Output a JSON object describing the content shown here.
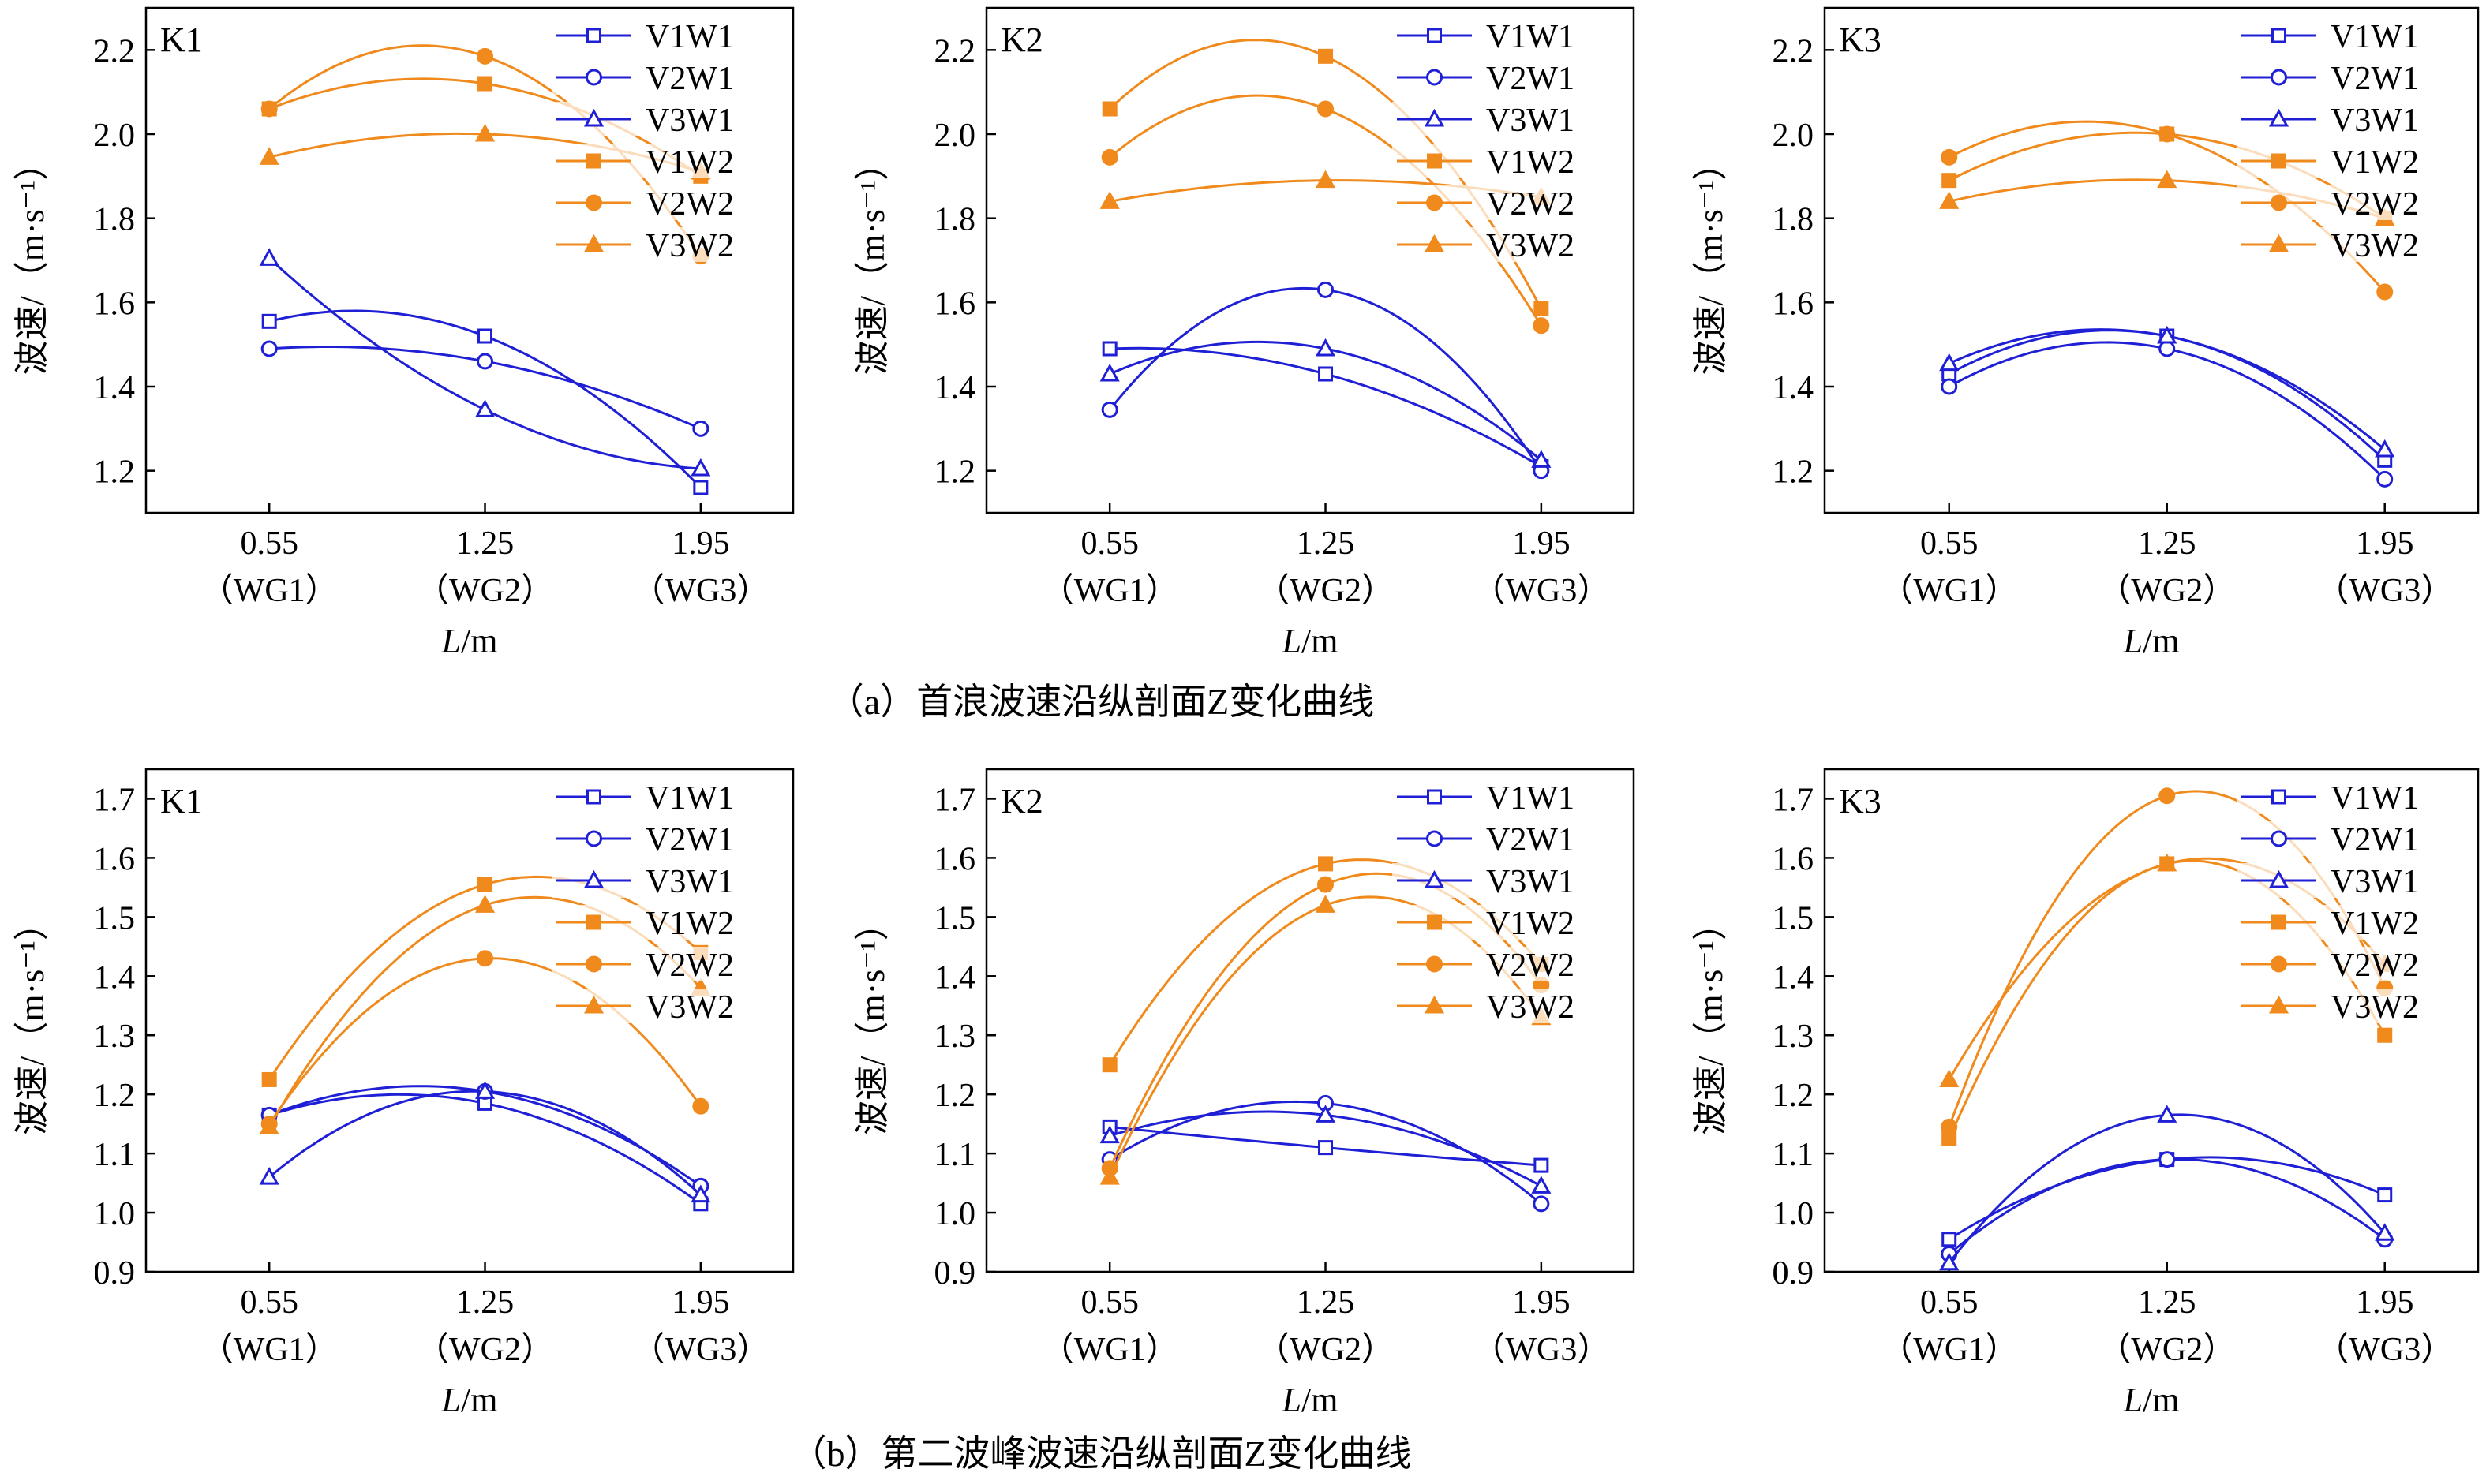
{
  "colors": {
    "w1": "#1f1fd6",
    "w2": "#f08a1c",
    "axis": "#000000"
  },
  "legend_labels": [
    "V1W1",
    "V2W1",
    "V3W1",
    "V1W2",
    "V2W2",
    "V3W2"
  ],
  "markers": [
    "square-open",
    "circle-open",
    "triangle-open",
    "square-filled",
    "circle-filled",
    "triangle-filled"
  ],
  "captions": {
    "a": "（a）首浪波速沿纵剖面Z变化曲线",
    "b": "（b）第二波峰波速沿纵剖面Z变化曲线"
  },
  "chart_data": [
    {
      "type": "line",
      "panel_label": "K1",
      "ylabel": "波速/（m·s⁻¹）",
      "xlabel": "L/m",
      "x": [
        0.55,
        1.25,
        1.95
      ],
      "x_ticklabels": [
        "0.55",
        "1.25",
        "1.95"
      ],
      "x_ticklabels2": [
        "（WG1）",
        "（WG2）",
        "（WG3）"
      ],
      "ylim": [
        1.1,
        2.3
      ],
      "yticks": [
        1.2,
        1.4,
        1.6,
        1.8,
        2.0,
        2.2
      ],
      "ytick_labels": [
        "1.2",
        "1.4",
        "1.6",
        "1.8",
        "2.0",
        "2.2"
      ],
      "series": [
        {
          "name": "V1W1",
          "values": [
            1.555,
            1.52,
            1.16
          ]
        },
        {
          "name": "V2W1",
          "values": [
            1.49,
            1.46,
            1.3
          ]
        },
        {
          "name": "V3W1",
          "values": [
            1.705,
            1.345,
            1.205
          ]
        },
        {
          "name": "V1W2",
          "values": [
            2.06,
            2.12,
            1.9
          ]
        },
        {
          "name": "V2W2",
          "values": [
            2.06,
            2.185,
            1.71
          ]
        },
        {
          "name": "V3W2",
          "values": [
            1.945,
            2.0,
            1.91
          ]
        }
      ]
    },
    {
      "type": "line",
      "panel_label": "K2",
      "ylabel": "波速/（m·s⁻¹）",
      "xlabel": "L/m",
      "x": [
        0.55,
        1.25,
        1.95
      ],
      "x_ticklabels": [
        "0.55",
        "1.25",
        "1.95"
      ],
      "x_ticklabels2": [
        "（WG1）",
        "（WG2）",
        "（WG3）"
      ],
      "ylim": [
        1.1,
        2.3
      ],
      "yticks": [
        1.2,
        1.4,
        1.6,
        1.8,
        2.0,
        2.2
      ],
      "ytick_labels": [
        "1.2",
        "1.4",
        "1.6",
        "1.8",
        "2.0",
        "2.2"
      ],
      "series": [
        {
          "name": "V1W1",
          "values": [
            1.49,
            1.43,
            1.21
          ]
        },
        {
          "name": "V2W1",
          "values": [
            1.345,
            1.63,
            1.2
          ]
        },
        {
          "name": "V3W1",
          "values": [
            1.43,
            1.49,
            1.225
          ]
        },
        {
          "name": "V1W2",
          "values": [
            2.06,
            2.185,
            1.585
          ]
        },
        {
          "name": "V2W2",
          "values": [
            1.945,
            2.06,
            1.545
          ]
        },
        {
          "name": "V3W2",
          "values": [
            1.84,
            1.89,
            1.85
          ]
        }
      ]
    },
    {
      "type": "line",
      "panel_label": "K3",
      "ylabel": "波速/（m·s⁻¹）",
      "xlabel": "L/m",
      "x": [
        0.55,
        1.25,
        1.95
      ],
      "x_ticklabels": [
        "0.55",
        "1.25",
        "1.95"
      ],
      "x_ticklabels2": [
        "（WG1）",
        "（WG2）",
        "（WG3）"
      ],
      "ylim": [
        1.1,
        2.3
      ],
      "yticks": [
        1.2,
        1.4,
        1.6,
        1.8,
        2.0,
        2.2
      ],
      "ytick_labels": [
        "1.2",
        "1.4",
        "1.6",
        "1.8",
        "2.0",
        "2.2"
      ],
      "series": [
        {
          "name": "V1W1",
          "values": [
            1.43,
            1.52,
            1.225
          ]
        },
        {
          "name": "V2W1",
          "values": [
            1.4,
            1.49,
            1.18
          ]
        },
        {
          "name": "V3W1",
          "values": [
            1.455,
            1.52,
            1.25
          ]
        },
        {
          "name": "V1W2",
          "values": [
            1.89,
            2.0,
            1.8
          ]
        },
        {
          "name": "V2W2",
          "values": [
            1.945,
            2.0,
            1.625
          ]
        },
        {
          "name": "V3W2",
          "values": [
            1.84,
            1.89,
            1.8
          ]
        }
      ]
    },
    {
      "type": "line",
      "panel_label": "K1",
      "ylabel": "波速/（m·s⁻¹）",
      "xlabel": "L/m",
      "x": [
        0.55,
        1.25,
        1.95
      ],
      "x_ticklabels": [
        "0.55",
        "1.25",
        "1.95"
      ],
      "x_ticklabels2": [
        "（WG1）",
        "（WG2）",
        "（WG3）"
      ],
      "ylim": [
        0.9,
        1.75
      ],
      "yticks": [
        0.9,
        1.0,
        1.1,
        1.2,
        1.3,
        1.4,
        1.5,
        1.6,
        1.7
      ],
      "ytick_labels": [
        "0.9",
        "1.0",
        "1.1",
        "1.2",
        "1.3",
        "1.4",
        "1.5",
        "1.6",
        "1.7"
      ],
      "series": [
        {
          "name": "V1W1",
          "values": [
            1.165,
            1.185,
            1.015
          ]
        },
        {
          "name": "V2W1",
          "values": [
            1.165,
            1.205,
            1.045
          ]
        },
        {
          "name": "V3W1",
          "values": [
            1.06,
            1.205,
            1.03
          ]
        },
        {
          "name": "V1W2",
          "values": [
            1.225,
            1.555,
            1.44
          ]
        },
        {
          "name": "V2W2",
          "values": [
            1.15,
            1.43,
            1.18
          ]
        },
        {
          "name": "V3W2",
          "values": [
            1.145,
            1.52,
            1.38
          ]
        }
      ]
    },
    {
      "type": "line",
      "panel_label": "K2",
      "ylabel": "波速/（m·s⁻¹）",
      "xlabel": "L/m",
      "x": [
        0.55,
        1.25,
        1.95
      ],
      "x_ticklabels": [
        "0.55",
        "1.25",
        "1.95"
      ],
      "x_ticklabels2": [
        "（WG1）",
        "（WG2）",
        "（WG3）"
      ],
      "ylim": [
        0.9,
        1.75
      ],
      "yticks": [
        0.9,
        1.0,
        1.1,
        1.2,
        1.3,
        1.4,
        1.5,
        1.6,
        1.7
      ],
      "ytick_labels": [
        "0.9",
        "1.0",
        "1.1",
        "1.2",
        "1.3",
        "1.4",
        "1.5",
        "1.6",
        "1.7"
      ],
      "series": [
        {
          "name": "V1W1",
          "values": [
            1.145,
            1.11,
            1.08
          ]
        },
        {
          "name": "V2W1",
          "values": [
            1.09,
            1.185,
            1.015
          ]
        },
        {
          "name": "V3W1",
          "values": [
            1.13,
            1.165,
            1.045
          ]
        },
        {
          "name": "V1W2",
          "values": [
            1.25,
            1.59,
            1.42
          ]
        },
        {
          "name": "V2W2",
          "values": [
            1.075,
            1.555,
            1.385
          ]
        },
        {
          "name": "V3W2",
          "values": [
            1.06,
            1.52,
            1.33
          ]
        }
      ]
    },
    {
      "type": "line",
      "panel_label": "K3",
      "ylabel": "波速/（m·s⁻¹）",
      "xlabel": "L/m",
      "x": [
        0.55,
        1.25,
        1.95
      ],
      "x_ticklabels": [
        "0.55",
        "1.25",
        "1.95"
      ],
      "x_ticklabels2": [
        "（WG1）",
        "（WG2）",
        "（WG3）"
      ],
      "ylim": [
        0.9,
        1.75
      ],
      "yticks": [
        0.9,
        1.0,
        1.1,
        1.2,
        1.3,
        1.4,
        1.5,
        1.6,
        1.7
      ],
      "ytick_labels": [
        "0.9",
        "1.0",
        "1.1",
        "1.2",
        "1.3",
        "1.4",
        "1.5",
        "1.6",
        "1.7"
      ],
      "series": [
        {
          "name": "V1W1",
          "values": [
            0.955,
            1.09,
            1.03
          ]
        },
        {
          "name": "V2W1",
          "values": [
            0.93,
            1.09,
            0.955
          ]
        },
        {
          "name": "V3W1",
          "values": [
            0.915,
            1.165,
            0.965
          ]
        },
        {
          "name": "V1W2",
          "values": [
            1.125,
            1.59,
            1.3
          ]
        },
        {
          "name": "V2W2",
          "values": [
            1.145,
            1.705,
            1.38
          ]
        },
        {
          "name": "V3W2",
          "values": [
            1.225,
            1.59,
            1.42
          ]
        }
      ]
    }
  ]
}
